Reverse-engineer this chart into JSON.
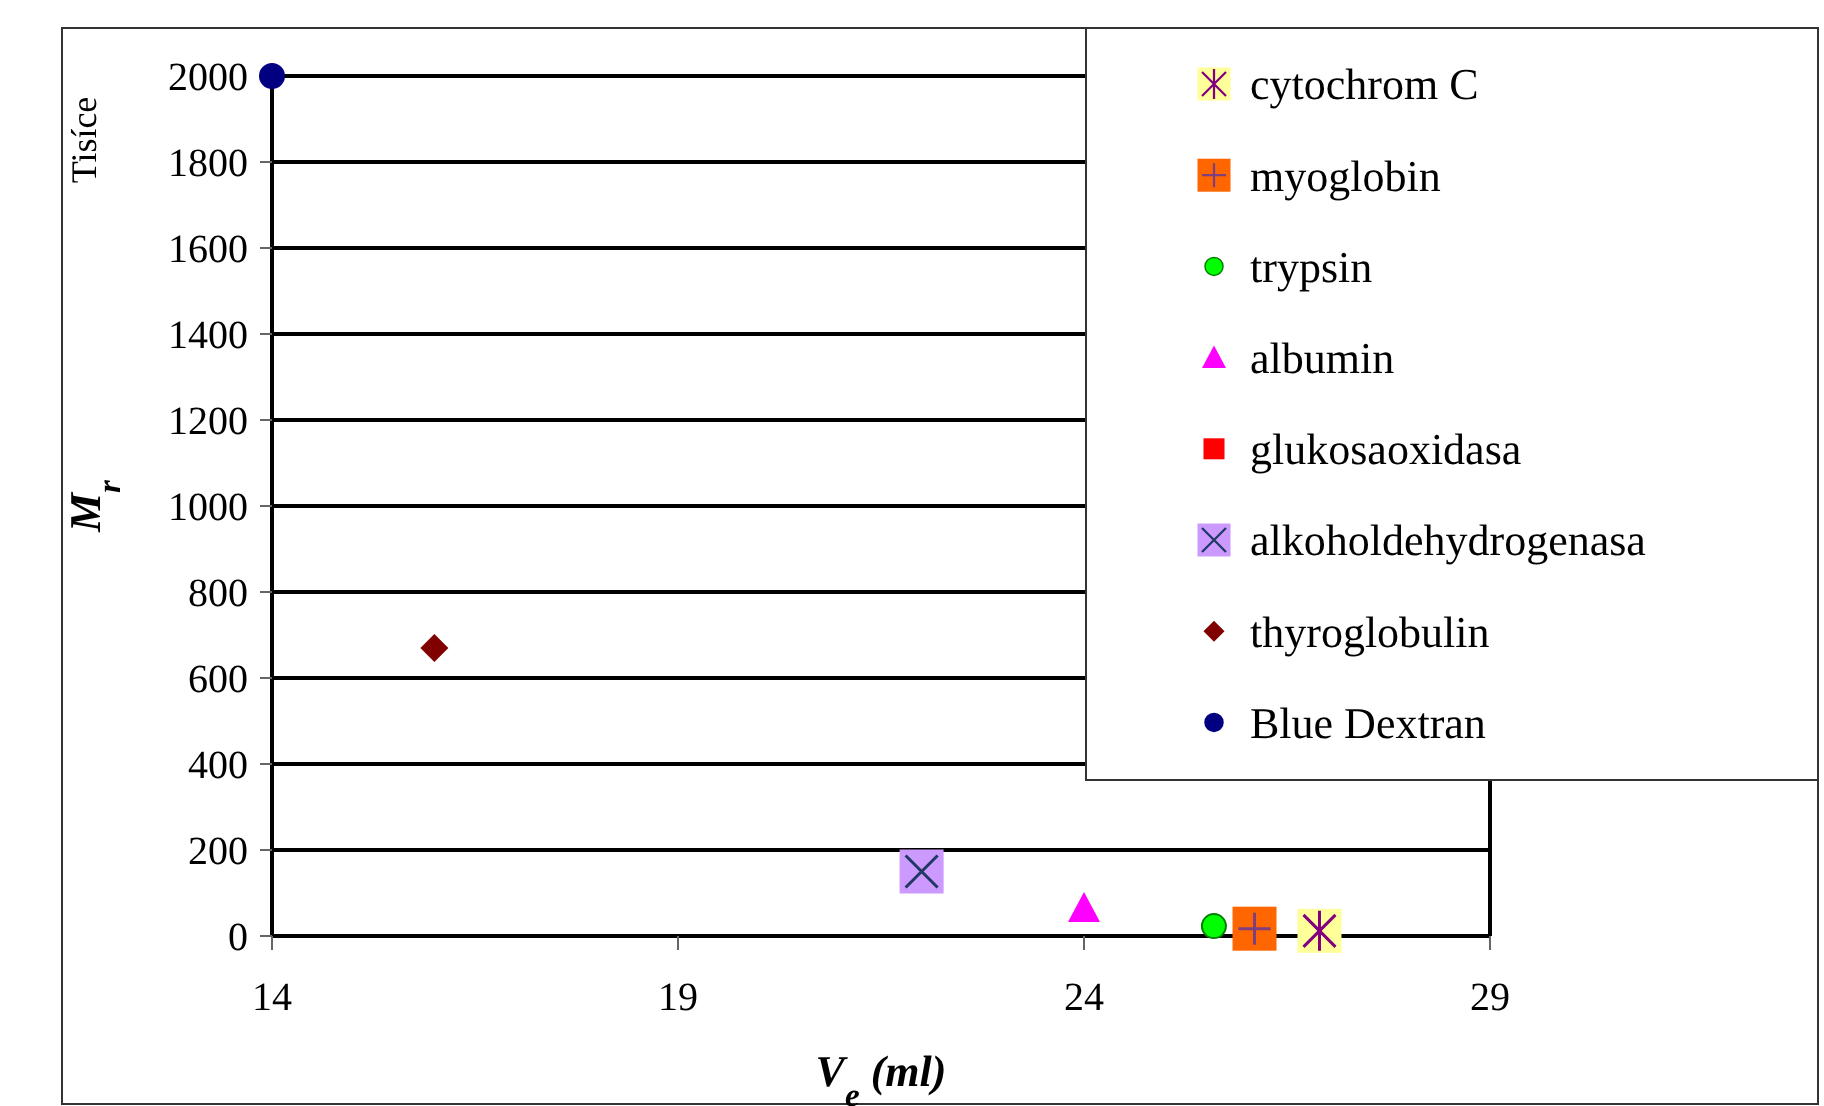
{
  "chart_data": {
    "type": "scatter",
    "xlabel": "V$_{e}$ (ml)",
    "ylabel": "M$_{r}$",
    "annotations": [
      "Tisíce"
    ],
    "xlim": [
      14,
      29
    ],
    "xticks": [
      14,
      19,
      24,
      29
    ],
    "ylim": [
      0,
      2000
    ],
    "yticks": [
      0,
      200,
      400,
      600,
      800,
      1000,
      1200,
      1400,
      1600,
      1800,
      2000
    ],
    "grid": "y",
    "legend": "top right",
    "series": [
      {
        "name": "cytochrom C",
        "color": "#ffff99",
        "marker": "square",
        "x": [
          26.9
        ],
        "values": [
          12
        ]
      },
      {
        "name": "myoglobin",
        "color": "#ff6600",
        "marker": "square",
        "x": [
          26.1
        ],
        "values": [
          17
        ]
      },
      {
        "name": "trypsin",
        "color": "#00ff00",
        "marker": "circle",
        "x": [
          25.6
        ],
        "values": [
          23
        ]
      },
      {
        "name": "albumin",
        "color": "#ff00ff",
        "marker": "triangle",
        "x": [
          24
        ],
        "values": [
          65
        ]
      },
      {
        "name": "glukosaoxidasa",
        "color": "#ff0000",
        "marker": "square"
      },
      {
        "name": "alkoholdehydrogenasa",
        "color": "#cc99ff",
        "marker": "square",
        "x": [
          22
        ],
        "values": [
          150
        ]
      },
      {
        "name": "thyroglobulin",
        "color": "#800000",
        "marker": "diamond",
        "x": [
          16
        ],
        "values": [
          670
        ]
      },
      {
        "name": "Blue Dextran",
        "color": "#000080",
        "marker": "circle",
        "x": [
          14
        ],
        "values": [
          2000
        ]
      }
    ]
  }
}
